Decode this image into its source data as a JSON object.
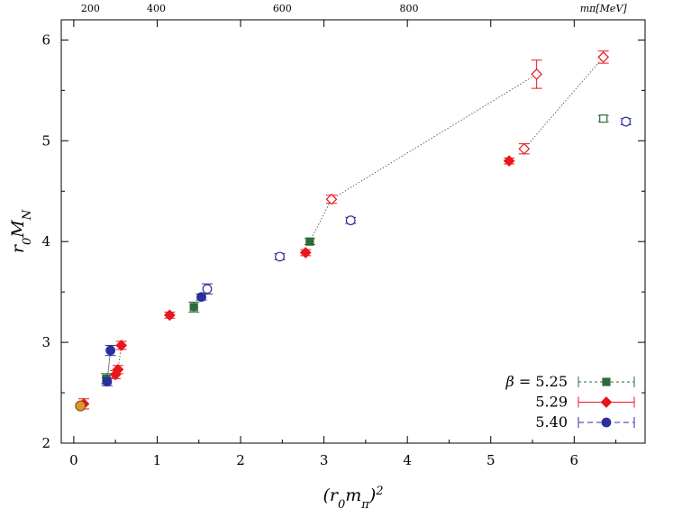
{
  "chart_data": {
    "type": "scatter",
    "xlabel": "(r₀mπ)²",
    "ylabel": "r₀M_N",
    "xlim": [
      -0.15,
      6.85
    ],
    "ylim": [
      2.0,
      6.2
    ],
    "x_ticks": [
      0,
      1,
      2,
      3,
      4,
      5,
      6
    ],
    "x_tick_labels": [
      "0",
      "1",
      "2",
      "3",
      "4",
      "5",
      "6"
    ],
    "y_ticks": [
      2,
      3,
      4,
      5,
      6
    ],
    "y_tick_labels": [
      "2",
      "3",
      "4",
      "5",
      "6"
    ],
    "top_axis": {
      "unit_label": "mπ[MeV]",
      "ticks": [
        {
          "label": "200",
          "x": 0.2
        },
        {
          "label": "400",
          "x": 0.99
        },
        {
          "label": "600",
          "x": 2.5
        },
        {
          "label": "800",
          "x": 4.02
        }
      ],
      "unit_x": 6.35
    },
    "legend": {
      "placement": "bottom-right",
      "prefix": "β = ",
      "entries": [
        "5.25",
        "5.29",
        "5.40"
      ]
    },
    "series": [
      {
        "name": "5.25",
        "color": "#2f6b3a",
        "points": [
          {
            "x": 0.39,
            "y": 2.64,
            "err": 0.05,
            "xerr": 0.05,
            "filled": true,
            "marker": "square"
          },
          {
            "x": 1.44,
            "y": 3.35,
            "err": 0.05,
            "xerr": 0.05,
            "filled": true,
            "marker": "square"
          },
          {
            "x": 2.83,
            "y": 4.0,
            "err": 0.03,
            "xerr": 0.05,
            "filled": true,
            "marker": "square"
          },
          {
            "x": 6.35,
            "y": 5.22,
            "err": 0.03,
            "xerr": 0.05,
            "filled": false,
            "marker": "square"
          }
        ]
      },
      {
        "name": "5.29",
        "color": "#e8171c",
        "points": [
          {
            "x": 0.12,
            "y": 2.39,
            "err": 0.05,
            "xerr": 0.05,
            "filled": true,
            "marker": "diamond"
          },
          {
            "x": 0.5,
            "y": 2.68,
            "err": 0.04,
            "xerr": 0.05,
            "filled": true,
            "marker": "diamond"
          },
          {
            "x": 0.53,
            "y": 2.73,
            "err": 0.04,
            "xerr": 0.05,
            "filled": true,
            "marker": "diamond"
          },
          {
            "x": 0.57,
            "y": 2.97,
            "err": 0.04,
            "xerr": 0.05,
            "filled": true,
            "marker": "diamond"
          },
          {
            "x": 1.15,
            "y": 3.27,
            "err": 0.03,
            "xerr": 0.05,
            "filled": true,
            "marker": "diamond"
          },
          {
            "x": 2.78,
            "y": 3.89,
            "err": 0.03,
            "xerr": 0.05,
            "filled": true,
            "marker": "diamond"
          },
          {
            "x": 3.09,
            "y": 4.42,
            "err": 0.04,
            "xerr": 0.05,
            "filled": false,
            "marker": "diamond"
          },
          {
            "x": 5.22,
            "y": 4.8,
            "err": 0.03,
            "xerr": 0.05,
            "filled": true,
            "marker": "diamond"
          },
          {
            "x": 5.4,
            "y": 4.92,
            "err": 0.05,
            "xerr": 0.05,
            "filled": false,
            "marker": "diamond"
          },
          {
            "x": 5.55,
            "y": 5.66,
            "err": 0.14,
            "xerr": 0.05,
            "filled": false,
            "marker": "diamond"
          },
          {
            "x": 6.35,
            "y": 5.83,
            "err": 0.06,
            "xerr": 0.05,
            "filled": false,
            "marker": "diamond"
          }
        ]
      },
      {
        "name": "5.40",
        "color": "#2b2f9e",
        "points": [
          {
            "x": 0.4,
            "y": 2.61,
            "err": 0.04,
            "xerr": 0.05,
            "filled": true,
            "marker": "circle"
          },
          {
            "x": 0.44,
            "y": 2.92,
            "err": 0.05,
            "xerr": 0.05,
            "filled": true,
            "marker": "circle"
          },
          {
            "x": 1.53,
            "y": 3.45,
            "err": 0.03,
            "xerr": 0.05,
            "filled": true,
            "marker": "circle"
          },
          {
            "x": 1.6,
            "y": 3.53,
            "err": 0.05,
            "xerr": 0.05,
            "filled": false,
            "marker": "circle"
          },
          {
            "x": 2.47,
            "y": 3.85,
            "err": 0.03,
            "xerr": 0.05,
            "filled": false,
            "marker": "circle"
          },
          {
            "x": 3.32,
            "y": 4.21,
            "err": 0.03,
            "xerr": 0.05,
            "filled": false,
            "marker": "circle"
          },
          {
            "x": 6.62,
            "y": 5.19,
            "err": 0.03,
            "xerr": 0.05,
            "filled": false,
            "marker": "circle"
          }
        ]
      }
    ],
    "physical_point": {
      "x": 0.08,
      "y": 2.37,
      "color": "#e0952e"
    },
    "dotted_links": [
      [
        [
          0.4,
          2.61
        ],
        [
          0.44,
          2.92
        ]
      ],
      [
        [
          0.44,
          2.92
        ],
        [
          0.4,
          2.61
        ]
      ],
      [
        [
          0.53,
          2.73
        ],
        [
          0.57,
          2.97
        ]
      ],
      [
        [
          2.83,
          4.0
        ],
        [
          3.09,
          4.42
        ]
      ],
      [
        [
          3.09,
          4.42
        ],
        [
          5.55,
          5.66
        ]
      ],
      [
        [
          5.4,
          4.92
        ],
        [
          6.35,
          5.83
        ]
      ]
    ]
  }
}
